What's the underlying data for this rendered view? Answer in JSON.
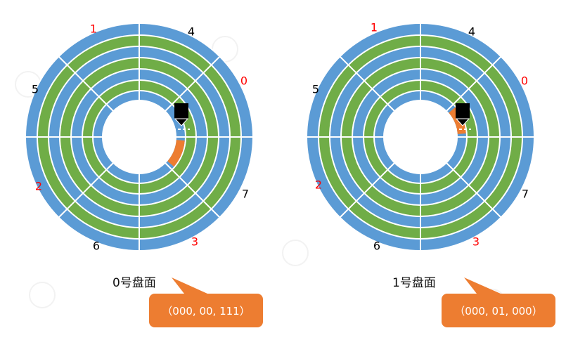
{
  "colors": {
    "ring_blue": "#5B9BD5",
    "ring_green": "#70AD47",
    "accent_orange": "#ED7D31",
    "head_black": "#000000",
    "sector_label_red": "#FF0000",
    "sector_label_black": "#000000",
    "watermark": "#d9d9d9"
  },
  "icons": {
    "read_write_head": "read-write-head-icon"
  },
  "platters": [
    {
      "id": "platter-0",
      "surface_label": "0号盘面",
      "callout": "（000, 00, 111）",
      "highlighted_sector": "7",
      "highlighted_track": "innermost",
      "sector_labels": [
        {
          "text": "1",
          "color": "red"
        },
        {
          "text": "4",
          "color": "black"
        },
        {
          "text": "0",
          "color": "red"
        },
        {
          "text": "5",
          "color": "black"
        },
        {
          "text": "2",
          "color": "red"
        },
        {
          "text": "7",
          "color": "black"
        },
        {
          "text": "6",
          "color": "black"
        },
        {
          "text": "3",
          "color": "red"
        }
      ]
    },
    {
      "id": "platter-1",
      "surface_label": "1号盘面",
      "callout": "（000, 01, 000）",
      "highlighted_sector": "0",
      "highlighted_track": "innermost",
      "sector_labels": [
        {
          "text": "1",
          "color": "red"
        },
        {
          "text": "4",
          "color": "black"
        },
        {
          "text": "0",
          "color": "red"
        },
        {
          "text": "5",
          "color": "black"
        },
        {
          "text": "2",
          "color": "red"
        },
        {
          "text": "7",
          "color": "black"
        },
        {
          "text": "6",
          "color": "black"
        },
        {
          "text": "3",
          "color": "red"
        }
      ]
    }
  ]
}
